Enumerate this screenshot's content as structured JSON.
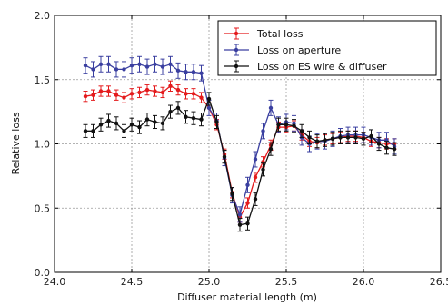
{
  "chart_data": {
    "type": "line",
    "xlabel": "Diffuser material length (m)",
    "ylabel": "Relative loss",
    "xlim": [
      24.0,
      26.5
    ],
    "ylim": [
      0.0,
      2.0
    ],
    "xticks": [
      24.0,
      24.5,
      25.0,
      25.5,
      26.0,
      26.5
    ],
    "xtick_labels": [
      "24.0",
      "24.5",
      "25.0",
      "25.5",
      "26.0",
      "26.5"
    ],
    "yticks": [
      0.0,
      0.5,
      1.0,
      1.5,
      2.0
    ],
    "ytick_labels": [
      "0.0",
      "0.5",
      "1.0",
      "1.5",
      "2.0"
    ],
    "grid": true,
    "legend_position": "top-right",
    "x": [
      24.2,
      24.25,
      24.3,
      24.35,
      24.4,
      24.45,
      24.5,
      24.55,
      24.6,
      24.65,
      24.7,
      24.75,
      24.8,
      24.85,
      24.9,
      24.95,
      25.0,
      25.05,
      25.1,
      25.15,
      25.2,
      25.25,
      25.3,
      25.35,
      25.4,
      25.45,
      25.5,
      25.55,
      25.6,
      25.65,
      25.7,
      25.75,
      25.8,
      25.85,
      25.9,
      25.95,
      26.0,
      26.05,
      26.1,
      26.15,
      26.2
    ],
    "series": [
      {
        "name": "Total loss",
        "color": "#e41a1c",
        "values": [
          1.37,
          1.38,
          1.41,
          1.41,
          1.38,
          1.36,
          1.39,
          1.4,
          1.42,
          1.41,
          1.4,
          1.45,
          1.42,
          1.39,
          1.39,
          1.36,
          1.28,
          1.15,
          0.92,
          0.62,
          0.43,
          0.54,
          0.74,
          0.86,
          0.99,
          1.13,
          1.13,
          1.14,
          1.07,
          1.02,
          1.01,
          1.03,
          1.04,
          1.05,
          1.06,
          1.06,
          1.05,
          1.02,
          1.01,
          1.0,
          1.0
        ],
        "error": 0.04
      },
      {
        "name": "Loss on aperture",
        "color": "#3a3fa0",
        "values": [
          1.61,
          1.58,
          1.62,
          1.62,
          1.58,
          1.58,
          1.61,
          1.62,
          1.6,
          1.62,
          1.6,
          1.62,
          1.57,
          1.56,
          1.56,
          1.55,
          1.28,
          1.18,
          0.89,
          0.6,
          0.45,
          0.68,
          0.88,
          1.1,
          1.28,
          1.15,
          1.17,
          1.16,
          1.05,
          1.0,
          1.02,
          1.02,
          1.04,
          1.06,
          1.07,
          1.07,
          1.07,
          1.05,
          1.03,
          1.03,
          0.98
        ],
        "error": 0.06
      },
      {
        "name": "Loss on ES wire & diffuser",
        "color": "#111111",
        "values": [
          1.1,
          1.1,
          1.15,
          1.18,
          1.16,
          1.1,
          1.15,
          1.13,
          1.19,
          1.17,
          1.16,
          1.25,
          1.28,
          1.21,
          1.2,
          1.19,
          1.35,
          1.17,
          0.9,
          0.61,
          0.37,
          0.38,
          0.57,
          0.8,
          0.96,
          1.15,
          1.15,
          1.14,
          1.1,
          1.05,
          1.02,
          1.03,
          1.04,
          1.05,
          1.05,
          1.05,
          1.04,
          1.06,
          1.0,
          0.97,
          0.96
        ],
        "error": 0.05
      }
    ]
  }
}
